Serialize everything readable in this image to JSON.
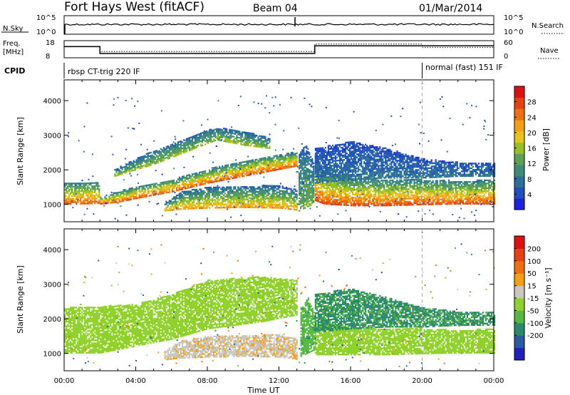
{
  "header": {
    "station": "Fort Hays West (fitACF)",
    "beam": "Beam 04",
    "date": "01/Mar/2014"
  },
  "status_panels": {
    "nsky_label": "N.Sky",
    "nsky_ticks": [
      "10^5",
      "10^0"
    ],
    "nsearch_label": "N.Search",
    "nsearch_ticks": [
      "10^5",
      "10^0"
    ],
    "freq_label": "Freq.",
    "freq_unit": "[MHz]",
    "freq_ticks": [
      "18",
      "8"
    ],
    "nave_label": "Nave",
    "nave_ticks": [
      "60",
      "0"
    ],
    "cpid_label": "CPID",
    "cpid_segments": [
      {
        "text": "rbsp CT-trig 220 IF",
        "start_hour": 0,
        "end_hour": 20
      },
      {
        "text": "normal (fast) 151 IF",
        "start_hour": 20,
        "end_hour": 24
      }
    ],
    "freq_trace": [
      [
        0,
        14.5
      ],
      [
        2,
        14.5
      ],
      [
        2,
        10.5
      ],
      [
        14,
        10.5
      ],
      [
        14,
        15
      ],
      [
        24,
        15
      ]
    ],
    "nave_trace": [
      [
        0,
        40
      ],
      [
        2,
        40
      ],
      [
        2,
        22
      ],
      [
        14,
        22
      ],
      [
        14,
        48
      ],
      [
        20,
        48
      ],
      [
        20,
        36
      ],
      [
        24,
        36
      ]
    ]
  },
  "chart_data": [
    {
      "type": "heatmap",
      "title": "",
      "quantity": "power",
      "xlabel": "Time UT",
      "ylabel": "Slant Range [km]",
      "xlim": [
        0,
        24
      ],
      "ylim": [
        500,
        4600
      ],
      "x_ticks": [
        "00:00",
        "04:00",
        "08:00",
        "12:00",
        "16:00",
        "20:00",
        "00:00"
      ],
      "y_ticks": [
        "1000",
        "2000",
        "3000",
        "4000"
      ],
      "colorbar_label": "Power [dB]",
      "colorbar_ticks": [
        "4",
        "8",
        "12",
        "16",
        "20",
        "24",
        "28"
      ],
      "colorbar_range": [
        0,
        32
      ],
      "colorbar_colors": [
        "#2020e0",
        "#2050c0",
        "#2a6e9a",
        "#3e8c78",
        "#5aa050",
        "#98c020",
        "#e6c419",
        "#f5a014",
        "#f07010",
        "#e84010",
        "#e01010"
      ],
      "dashed_marker_hour": 20,
      "echo_regions": [
        {
          "name": "near-range band",
          "t": [
            0,
            1.0,
            1.9,
            2.0,
            3.0,
            3.9,
            6.0,
            8.0,
            11.0,
            13.0
          ],
          "lower_km": [
            1000,
            1000,
            1020,
            1000,
            1050,
            1150,
            1350,
            1600,
            1900,
            2100
          ],
          "upper_km": [
            1600,
            1620,
            1650,
            1200,
            1350,
            1500,
            1700,
            2000,
            2350,
            2500
          ],
          "near_power": 26,
          "far_power": 8
        },
        {
          "name": "high arc",
          "t": [
            2.8,
            5.0,
            7.0,
            8.5,
            10.0,
            11.5
          ],
          "lower_km": [
            1800,
            2150,
            2550,
            2850,
            2700,
            2600
          ],
          "upper_km": [
            2000,
            2550,
            2950,
            3200,
            3100,
            2900
          ],
          "near_power": 16,
          "far_power": 6
        },
        {
          "name": "mid-range band",
          "t": [
            5.6,
            6.5,
            8.0,
            10.0,
            12.0,
            13.0
          ],
          "lower_km": [
            800,
            850,
            880,
            900,
            880,
            820
          ],
          "upper_km": [
            1000,
            1350,
            1480,
            1520,
            1520,
            1400
          ],
          "near_power": 22,
          "far_power": 6
        },
        {
          "name": "afternoon band",
          "t": [
            14.0,
            14.5,
            16.0,
            18.0,
            20.0,
            22.0,
            24.0
          ],
          "lower_km": [
            1100,
            1000,
            950,
            950,
            980,
            1000,
            1000
          ],
          "upper_km": [
            2400,
            1950,
            1750,
            1700,
            1700,
            1650,
            1700
          ],
          "near_power": 27,
          "far_power": 8
        },
        {
          "name": "afternoon upper scatter",
          "t": [
            14.0,
            16.0,
            18.0,
            20.0,
            22.0,
            24.0
          ],
          "lower_km": [
            1600,
            1700,
            1750,
            1750,
            1800,
            1800
          ],
          "upper_km": [
            2600,
            2800,
            2600,
            2300,
            2200,
            2200
          ],
          "near_power": 8,
          "far_power": 4
        },
        {
          "name": "spike near 13.5 UT",
          "t": [
            13.1,
            13.5,
            13.9
          ],
          "lower_km": [
            800,
            900,
            1000
          ],
          "upper_km": [
            2500,
            2700,
            2200
          ],
          "near_power": 14,
          "far_power": 6
        }
      ]
    },
    {
      "type": "heatmap",
      "title": "",
      "quantity": "velocity",
      "xlabel": "Time UT",
      "ylabel": "Slant Range [km]",
      "xlim": [
        0,
        24
      ],
      "ylim": [
        500,
        4600
      ],
      "x_ticks": [
        "00:00",
        "04:00",
        "08:00",
        "12:00",
        "16:00",
        "20:00",
        "00:00"
      ],
      "y_ticks": [
        "1000",
        "2000",
        "3000",
        "4000"
      ],
      "colorbar_label": "Velocity [m s⁻¹]",
      "colorbar_ticks": [
        "200",
        "100",
        "50",
        "15",
        "-15",
        "-50",
        "-100",
        "-200"
      ],
      "colorbar_colors": [
        "#2020c0",
        "#2a5aa0",
        "#2a8a6a",
        "#55b840",
        "#8fd12a",
        "#c8c8c0",
        "#f5a014",
        "#f07010",
        "#e84010",
        "#e01010"
      ],
      "dashed_marker_hour": 20,
      "echo_regions": [
        {
          "name": "ground scatter near range",
          "t": [
            0,
            2.0,
            4.0,
            6.0,
            8.0,
            11.0,
            13.0
          ],
          "lower_km": [
            1000,
            1000,
            1200,
            1400,
            1700,
            1900,
            2100
          ],
          "upper_km": [
            2300,
            2350,
            2400,
            2700,
            3100,
            3200,
            3100
          ],
          "velocity": 0
        },
        {
          "name": "mid-range negative velocity band",
          "t": [
            5.6,
            6.5,
            8.0,
            10.0,
            12.0,
            13.0
          ],
          "lower_km": [
            800,
            850,
            880,
            900,
            880,
            820
          ],
          "upper_km": [
            1050,
            1350,
            1480,
            1520,
            1520,
            1400
          ],
          "velocity": -40
        },
        {
          "name": "green spike near 13.5 UT",
          "t": [
            13.2,
            13.6,
            14.0
          ],
          "lower_km": [
            900,
            1000,
            1100
          ],
          "upper_km": [
            2300,
            2600,
            2100
          ],
          "velocity": 35
        },
        {
          "name": "afternoon ground scatter",
          "t": [
            14.0,
            16.0,
            18.0,
            20.0,
            22.0,
            24.0
          ],
          "lower_km": [
            950,
            950,
            950,
            980,
            1000,
            1000
          ],
          "upper_km": [
            1900,
            1750,
            1700,
            1700,
            1650,
            1700
          ],
          "velocity": 0
        },
        {
          "name": "afternoon mixed scatter",
          "t": [
            14.0,
            16.0,
            18.0,
            20.0,
            22.0,
            24.0
          ],
          "lower_km": [
            1600,
            1700,
            1750,
            1750,
            1800,
            1800
          ],
          "upper_km": [
            2700,
            2850,
            2600,
            2300,
            2200,
            2200
          ],
          "velocity": 60
        }
      ]
    }
  ]
}
